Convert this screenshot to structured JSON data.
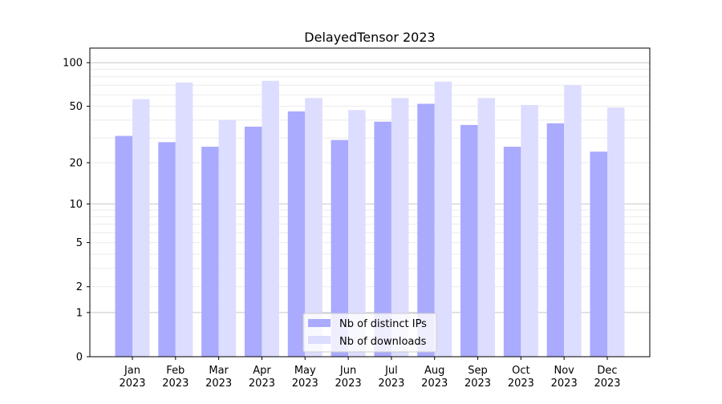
{
  "chart_data": {
    "type": "bar",
    "title": "DelayedTensor 2023",
    "xlabel": "",
    "ylabel": "",
    "yscale": "symlog (log10(1+y))",
    "ylim": [
      0,
      120
    ],
    "yticks": [
      0,
      1,
      2,
      5,
      10,
      20,
      50,
      100
    ],
    "grid": true,
    "legend_position": "bottom-center",
    "categories": [
      "Jan\n2023",
      "Feb\n2023",
      "Mar\n2023",
      "Apr\n2023",
      "May\n2023",
      "Jun\n2023",
      "Jul\n2023",
      "Aug\n2023",
      "Sep\n2023",
      "Oct\n2023",
      "Nov\n2023",
      "Dec\n2023"
    ],
    "series": [
      {
        "name": "Nb of distinct IPs",
        "color": "#aaaaff",
        "values": [
          31,
          28,
          26,
          36,
          46,
          29,
          39,
          52,
          37,
          26,
          38,
          24
        ]
      },
      {
        "name": "Nb of downloads",
        "color": "#ddddff",
        "values": [
          56,
          73,
          40,
          75,
          57,
          47,
          57,
          74,
          57,
          51,
          70,
          49
        ]
      }
    ]
  }
}
